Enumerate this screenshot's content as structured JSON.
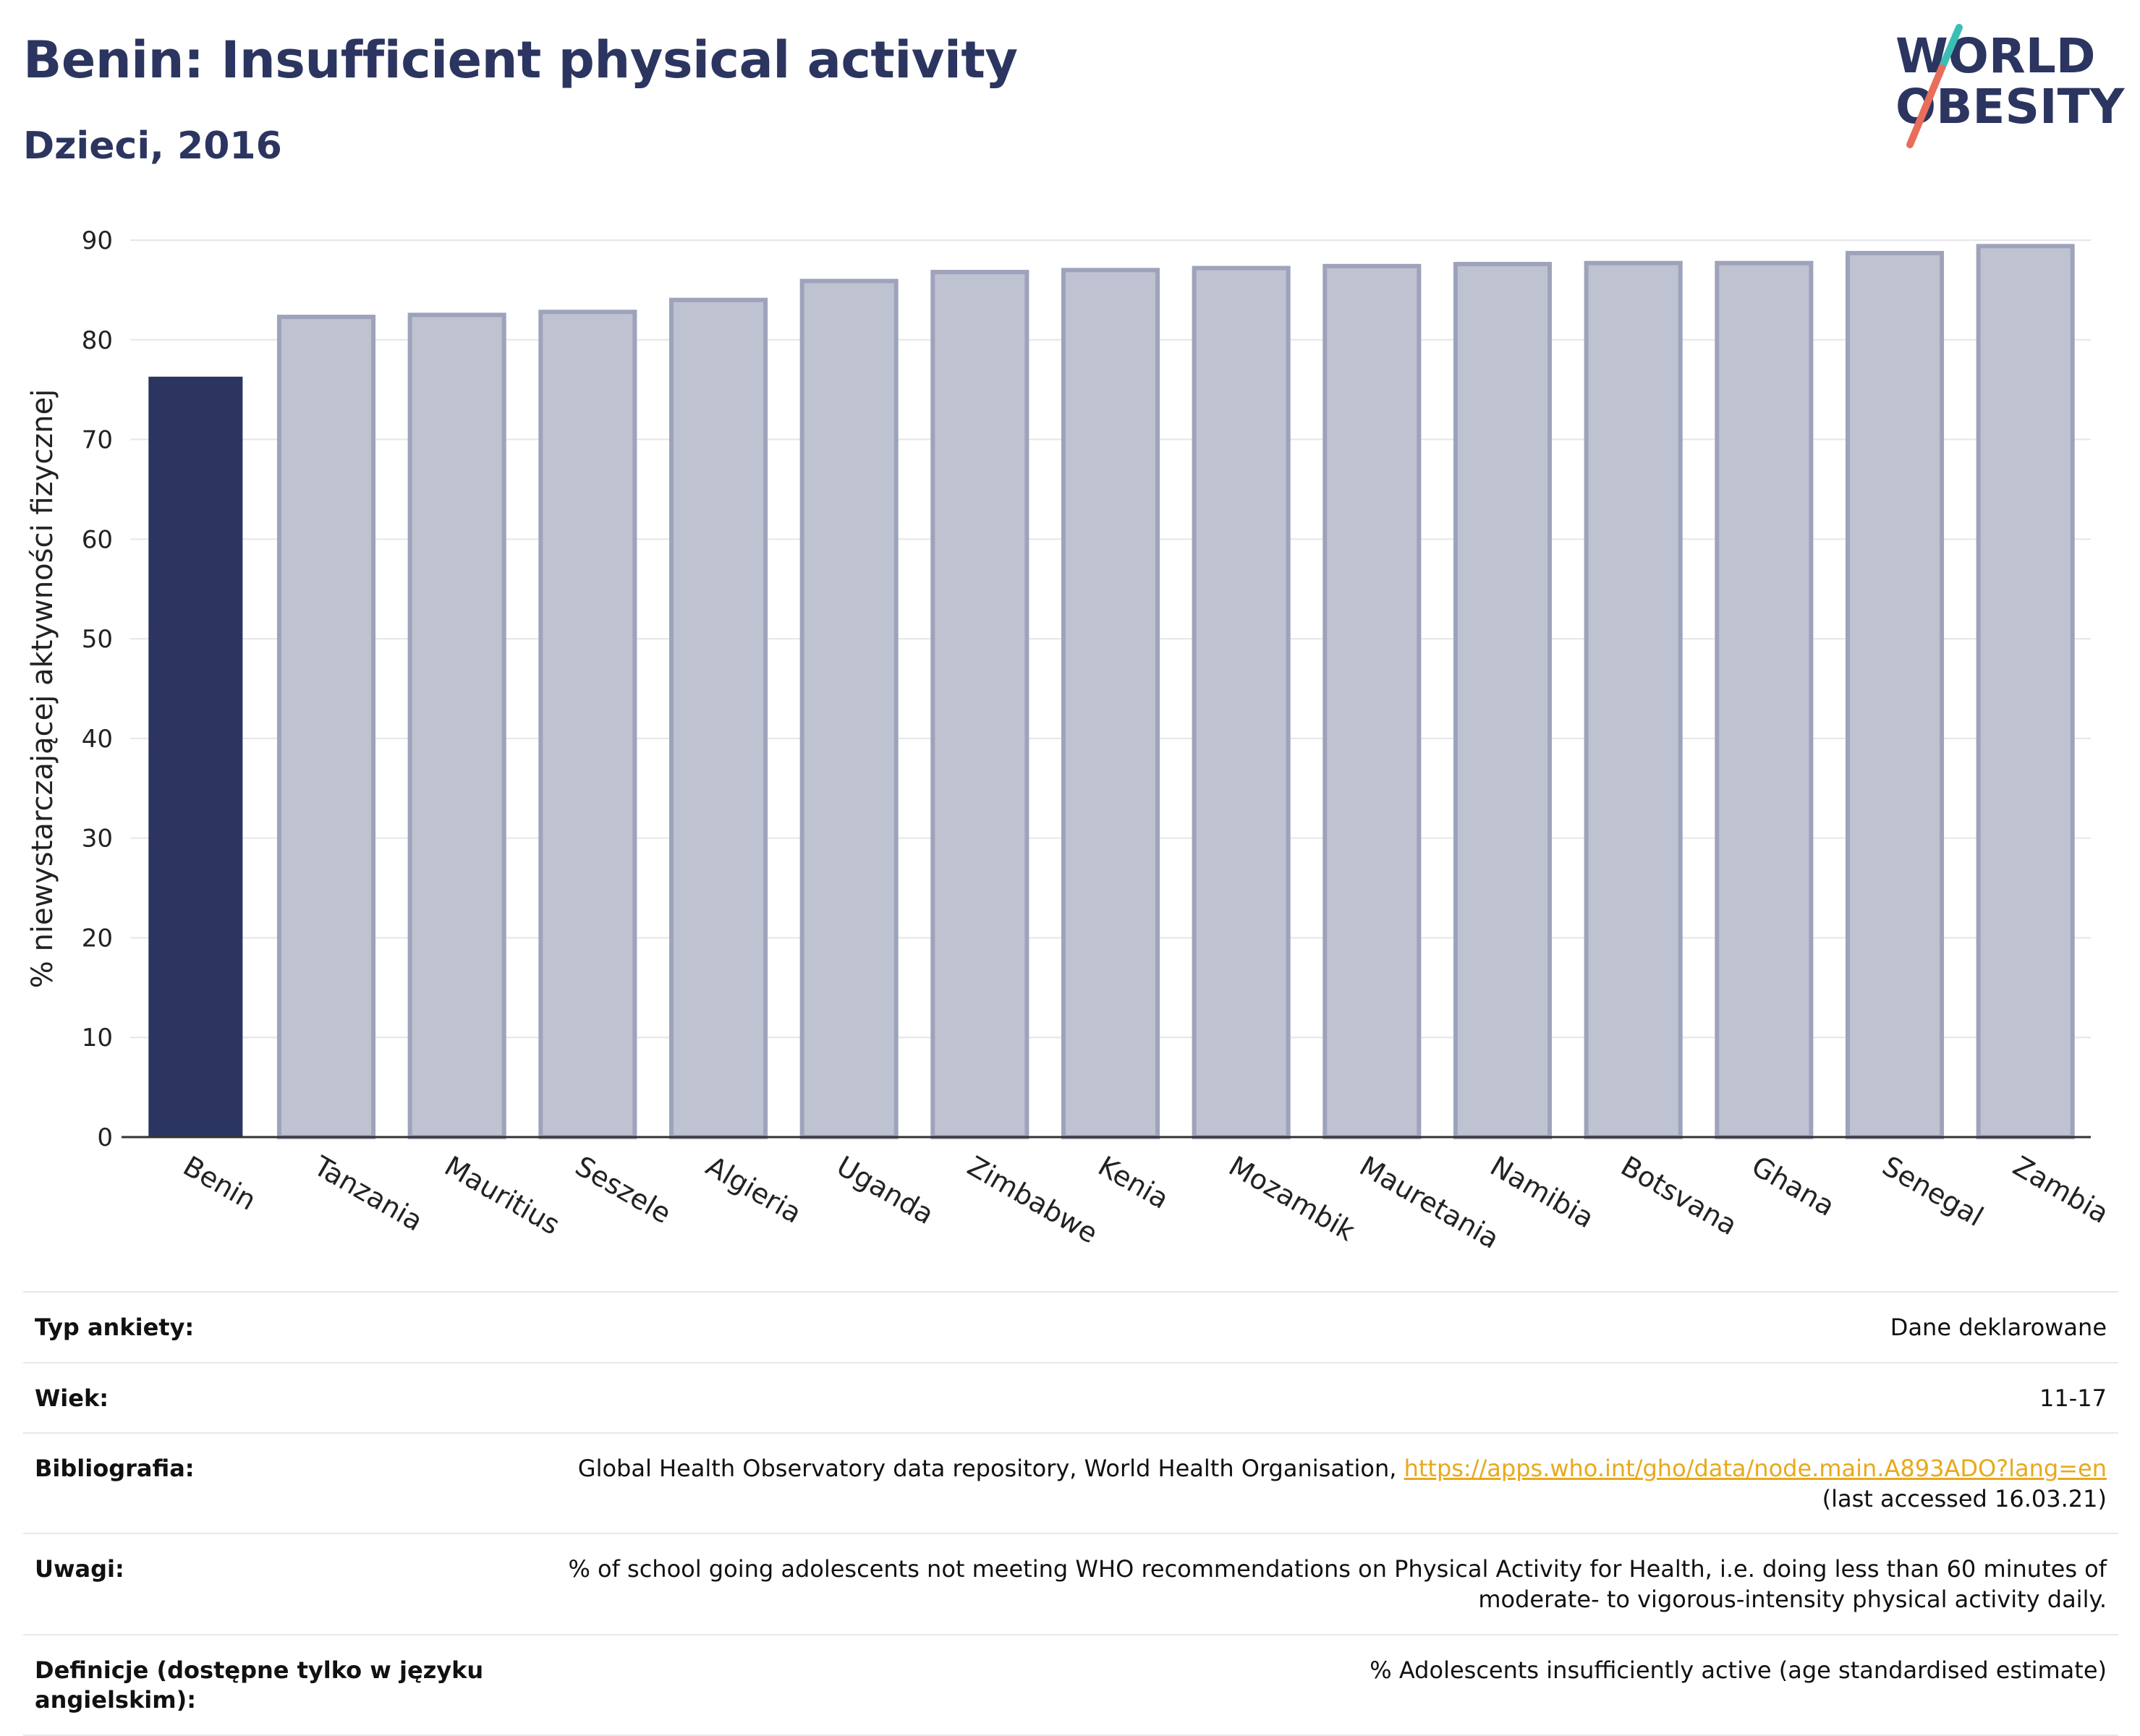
{
  "header": {
    "title": "Benin: Insufficient physical activity",
    "subtitle": "Dzieci, 2016"
  },
  "logo": {
    "line1": "WORLD",
    "line2": "OBESITY",
    "slash_colors": [
      "#3bbfb5",
      "#e86e5b"
    ],
    "text_color": "#2b3560"
  },
  "colors": {
    "highlight": "#2b3560",
    "bar": "#bfc2d0",
    "bar_stroke": "#9ea3bb",
    "grid": "#e6e6ea",
    "link": "#e8a91a"
  },
  "chart_data": {
    "type": "bar",
    "ylabel": "% niewystarczającej aktywności fizycznej",
    "xlabel": "",
    "ylim": [
      0,
      90
    ],
    "yticks": [
      0,
      10,
      20,
      30,
      40,
      50,
      60,
      70,
      80,
      90
    ],
    "grid": true,
    "highlight_category": "Benin",
    "categories": [
      "Benin",
      "Tanzania",
      "Mauritius",
      "Seszele",
      "Algieria",
      "Uganda",
      "Zimbabwe",
      "Kenia",
      "Mozambik",
      "Mauretania",
      "Namibia",
      "Botsvana",
      "Ghana",
      "Senegal",
      "Zambia"
    ],
    "values": [
      76.3,
      82.3,
      82.5,
      82.8,
      84.0,
      85.9,
      86.8,
      87.0,
      87.2,
      87.4,
      87.6,
      87.7,
      87.7,
      88.7,
      89.4
    ]
  },
  "meta": {
    "rows": [
      {
        "label": "Typ ankiety:",
        "value": "Dane deklarowane"
      },
      {
        "label": "Wiek:",
        "value": "11-17"
      },
      {
        "label": "Bibliografia:",
        "value": "Global Health Observatory data repository, World Health Organisation, ",
        "link": "https://apps.who.int/gho/data/node.main.A893ADO?lang=en",
        "value_after": "(last accessed 16.03.21)"
      },
      {
        "label": "Uwagi:",
        "value": "% of school going adolescents not meeting WHO recommendations on Physical Activity for Health, i.e. doing less than 60 minutes of moderate- to vigorous-intensity physical activity daily."
      },
      {
        "label": "Definicje (dostępne tylko w języku angielskim):",
        "value": "% Adolescents insufficiently active (age standardised estimate)"
      }
    ]
  }
}
